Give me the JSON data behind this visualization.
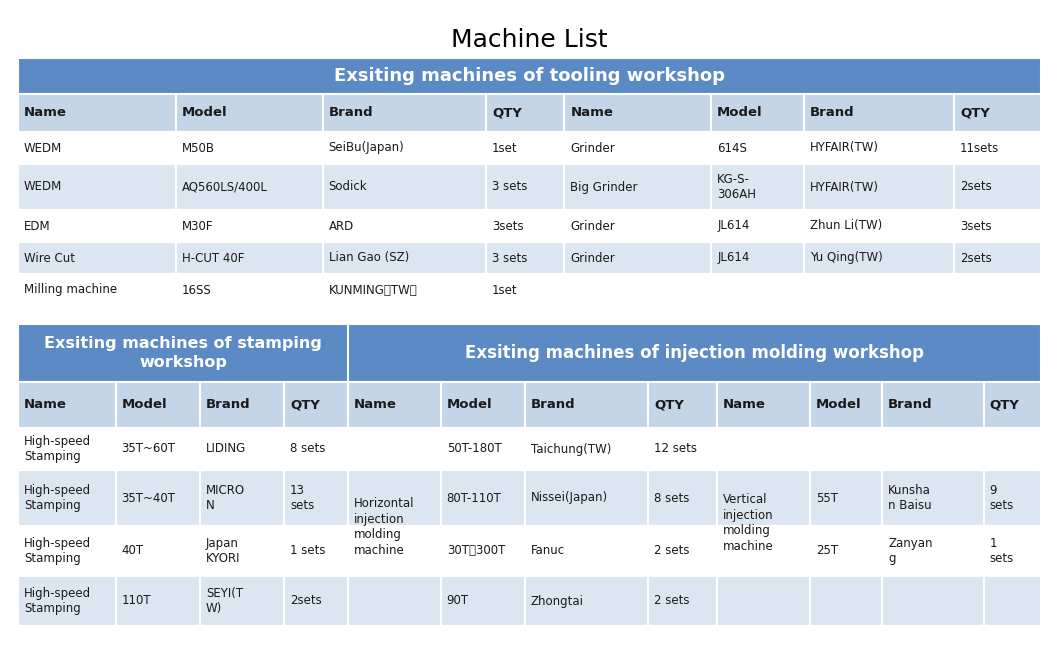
{
  "title": "Machine List",
  "header_bg": "#5b8ac5",
  "header_text_color": "#ffffff",
  "col_header_bg": "#c5d5e8",
  "row_bg_alt": "#dce6f1",
  "row_bg_white": "#ffffff",
  "border_color": "#ffffff",
  "tooling_header": "Exsiting machines of tooling workshop",
  "tooling_col_headers": [
    "Name",
    "Model",
    "Brand",
    "QTY",
    "Name",
    "Model",
    "Brand",
    "QTY"
  ],
  "tooling_rows": [
    [
      "WEDM",
      "M50B",
      "SeiBu(Japan)",
      "1set",
      "Grinder",
      "614S",
      "HYFAIR(TW)",
      "11sets"
    ],
    [
      "WEDM",
      "AQ560LS/400L",
      "Sodick",
      "3 sets",
      "Big Grinder",
      "KG-S-\n306AH",
      "HYFAIR(TW)",
      "2sets"
    ],
    [
      "EDM",
      "M30F",
      "ARD",
      "3sets",
      "Grinder",
      "JL614",
      "Zhun Li(TW)",
      "3sets"
    ],
    [
      "Wire Cut",
      "H-CUT 40F",
      "Lian Gao (SZ)",
      "3 sets",
      "Grinder",
      "JL614",
      "Yu Qing(TW)",
      "2sets"
    ],
    [
      "Milling machine",
      "16SS",
      "KUNMING（TW）",
      "1set",
      "",
      "",
      "",
      ""
    ]
  ],
  "stamping_header": "Exsiting machines of stamping\nworkshop",
  "stamping_col_headers": [
    "Name",
    "Model",
    "Brand",
    "QTY"
  ],
  "stamping_rows": [
    [
      "High-speed\nStamping",
      "35T~60T",
      "LIDING",
      "8 sets"
    ],
    [
      "High-speed\nStamping",
      "35T~40T",
      "MICRO\nN",
      "13\nsets"
    ],
    [
      "High-speed\nStamping",
      "40T",
      "Japan\nKYORI",
      "1 sets"
    ],
    [
      "High-speed\nStamping",
      "110T",
      "SEYI(T\nW)",
      "2sets"
    ]
  ],
  "injection_header": "Exsiting machines of injection molding workshop",
  "injection_col_headers": [
    "Name",
    "Model",
    "Brand",
    "QTY",
    "Name",
    "Model",
    "Brand",
    "QTY"
  ],
  "injection_rows": [
    [
      "",
      "50T-180T",
      "Taichung(TW)",
      "12 sets",
      "",
      "",
      "",
      ""
    ],
    [
      "Horizontal\ninjection\nmolding\nmachine",
      "80T-110T",
      "Nissei(Japan)",
      "8 sets",
      "Vertical\ninjection\nmolding\nmachine",
      "55T",
      "Kunsha\nn Baisu",
      "9\nsets"
    ],
    [
      "",
      "30T、300T",
      "Fanuc",
      "2 sets",
      "",
      "25T",
      "Zanyan\ng",
      "1\nsets"
    ],
    [
      "",
      "90T",
      "Zhongtai",
      "2 sets",
      "",
      "",
      "",
      ""
    ]
  ]
}
